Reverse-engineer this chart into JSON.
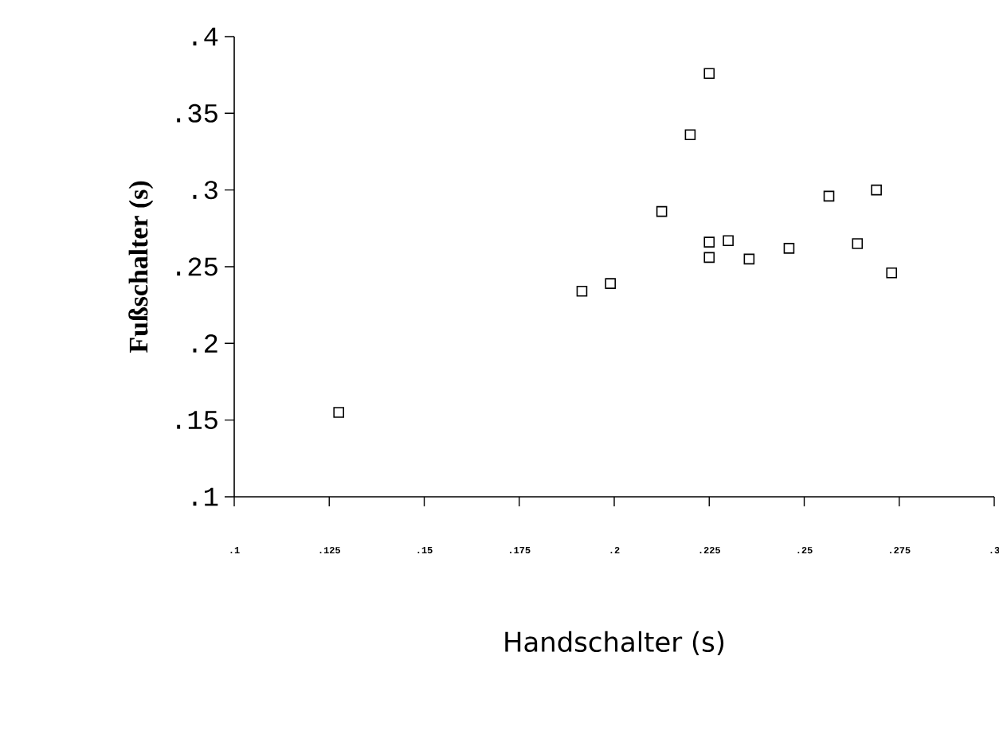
{
  "chart_data": {
    "type": "scatter",
    "xlabel": "Handschalter (s)",
    "ylabel": "Fußschalter (s)",
    "marker": "square",
    "color": "#000000",
    "x": [
      0.1275,
      0.1915,
      0.199,
      0.2125,
      0.22,
      0.225,
      0.225,
      0.225,
      0.23,
      0.2355,
      0.246,
      0.2565,
      0.264,
      0.269,
      0.273
    ],
    "values": [
      0.155,
      0.234,
      0.239,
      0.286,
      0.336,
      0.376,
      0.266,
      0.256,
      0.267,
      0.255,
      0.262,
      0.296,
      0.265,
      0.3,
      0.246
    ],
    "xlim": [
      0.1,
      0.3
    ],
    "ylim": [
      0.1,
      0.4
    ],
    "xticks": [
      {
        "value": 0.1,
        "label": ".1"
      },
      {
        "value": 0.125,
        "label": ".125"
      },
      {
        "value": 0.15,
        "label": ".15"
      },
      {
        "value": 0.175,
        "label": ".175"
      },
      {
        "value": 0.2,
        "label": ".2"
      },
      {
        "value": 0.225,
        "label": ".225"
      },
      {
        "value": 0.25,
        "label": ".25"
      },
      {
        "value": 0.275,
        "label": ".275"
      },
      {
        "value": 0.3,
        "label": ".3"
      }
    ],
    "yticks": [
      {
        "value": 0.1,
        "label": ".1"
      },
      {
        "value": 0.15,
        "label": ".15"
      },
      {
        "value": 0.2,
        "label": ".2"
      },
      {
        "value": 0.25,
        "label": ".25"
      },
      {
        "value": 0.3,
        "label": ".3"
      },
      {
        "value": 0.35,
        "label": ".35"
      },
      {
        "value": 0.4,
        "label": ".4"
      }
    ]
  }
}
